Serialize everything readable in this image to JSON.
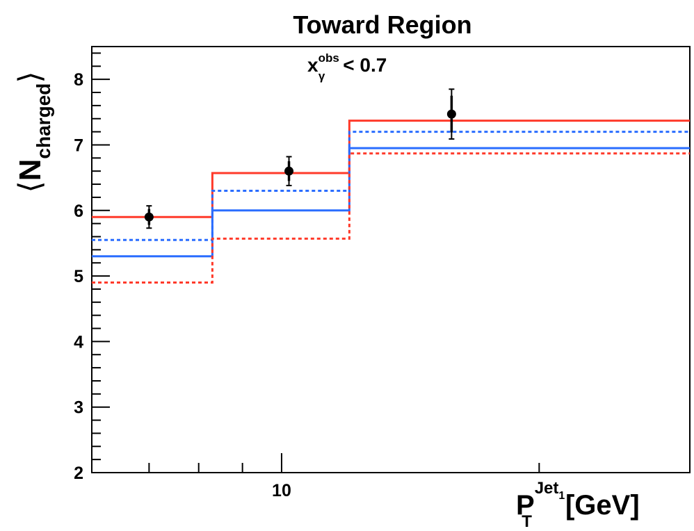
{
  "chart_data": {
    "type": "step",
    "title": "Toward Region",
    "annotation": {
      "symbol": "x",
      "subscript": "γ",
      "superscript": "obs",
      "text": "< 0.7"
    },
    "ylabel": {
      "open_bracket": "⟨",
      "base": "N",
      "subscript": "charged",
      "close_bracket": "⟩"
    },
    "xlabel": {
      "base": "P",
      "subscript": "T",
      "superscript": "Jet",
      "superscript_subscript": "1",
      "unit": "[GeV]"
    },
    "x_scale": "log",
    "xlim": [
      6,
      30
    ],
    "ylim": [
      2,
      8.5
    ],
    "x_tick_labels": [
      {
        "value": 10,
        "label": "10"
      }
    ],
    "x_minor_ticks": [
      6,
      7,
      8,
      9,
      10,
      20,
      30
    ],
    "y_tick_labels": [
      {
        "value": 2,
        "label": "2"
      },
      {
        "value": 3,
        "label": "3"
      },
      {
        "value": 4,
        "label": "4"
      },
      {
        "value": 5,
        "label": "5"
      },
      {
        "value": 6,
        "label": "6"
      },
      {
        "value": 7,
        "label": "7"
      },
      {
        "value": 8,
        "label": "8"
      }
    ],
    "y_minor_step": 0.2,
    "bin_edges": [
      6,
      8.3,
      12,
      30
    ],
    "series": [
      {
        "color": "#ff3a2a",
        "style": "solid",
        "values": [
          5.9,
          6.57,
          7.37
        ]
      },
      {
        "color": "#2a6dff",
        "style": "dashed",
        "values": [
          5.55,
          6.3,
          7.2
        ]
      },
      {
        "color": "#2a6dff",
        "style": "solid",
        "values": [
          5.3,
          6.0,
          6.95
        ]
      },
      {
        "color": "#ff3a2a",
        "style": "dashed",
        "values": [
          4.9,
          5.57,
          6.87
        ]
      }
    ],
    "data_points": [
      {
        "x": 7.0,
        "y": 5.9,
        "err_stat": 0.12,
        "err_sys": 0.17
      },
      {
        "x": 10.2,
        "y": 6.6,
        "err_stat": 0.15,
        "err_sys": 0.22
      },
      {
        "x": 15.8,
        "y": 7.47,
        "err_stat": 0.28,
        "err_sys": 0.38
      }
    ]
  }
}
